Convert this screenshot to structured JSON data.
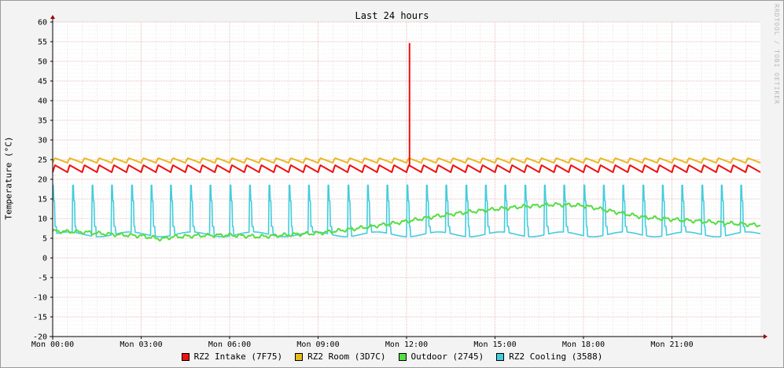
{
  "chart_data": {
    "type": "line",
    "title": "Last 24 hours",
    "watermark": "RRDTOOL / TOBI OETIKER",
    "ylabel": "Temperature (°C)",
    "xlabel": "",
    "ylim": [
      -20,
      60
    ],
    "y_ticks": [
      60,
      55,
      50,
      45,
      40,
      35,
      30,
      25,
      20,
      15,
      10,
      5,
      0,
      -5,
      -10,
      -15,
      -20
    ],
    "x_range_hours": [
      0,
      24
    ],
    "x_ticks": [
      {
        "label": "Mon 00:00",
        "hour": 0
      },
      {
        "label": "Mon 03:00",
        "hour": 3
      },
      {
        "label": "Mon 06:00",
        "hour": 6
      },
      {
        "label": "Mon 09:00",
        "hour": 9
      },
      {
        "label": "Mon 12:00",
        "hour": 12
      },
      {
        "label": "Mon 15:00",
        "hour": 15
      },
      {
        "label": "Mon 18:00",
        "hour": 18
      },
      {
        "label": "Mon 21:00",
        "hour": 21
      }
    ],
    "grid": true,
    "legend_position": "bottom",
    "series": [
      {
        "name": "RZ2 Intake (7F75)",
        "color": "#ee1111",
        "pattern": "sawtooth",
        "base": 22.7,
        "amp": 0.9,
        "cycles_per_hour": 2.0,
        "spike": {
          "hour": 12.1,
          "value": 54.5
        }
      },
      {
        "name": "RZ2 Room (3D7C)",
        "color": "#e8b820",
        "pattern": "sawtooth",
        "base": 24.8,
        "amp": 0.6,
        "cycles_per_hour": 2.0
      },
      {
        "name": "Outdoor (2745)",
        "color": "#55dd44",
        "pattern": "trend",
        "points": [
          [
            0,
            6.8
          ],
          [
            1,
            6.6
          ],
          [
            2,
            6.0
          ],
          [
            3,
            5.6
          ],
          [
            3.7,
            4.8
          ],
          [
            4,
            5.3
          ],
          [
            5,
            5.7
          ],
          [
            6,
            5.8
          ],
          [
            7,
            5.4
          ],
          [
            8,
            5.9
          ],
          [
            9,
            6.3
          ],
          [
            10,
            7.2
          ],
          [
            11,
            8.2
          ],
          [
            12,
            9.3
          ],
          [
            13,
            10.6
          ],
          [
            14,
            11.6
          ],
          [
            15,
            12.4
          ],
          [
            16,
            13.1
          ],
          [
            17,
            13.6
          ],
          [
            18,
            13.3
          ],
          [
            19,
            11.8
          ],
          [
            20,
            10.4
          ],
          [
            21,
            9.8
          ],
          [
            22,
            9.3
          ],
          [
            23,
            8.8
          ],
          [
            24,
            8.3
          ]
        ]
      },
      {
        "name": "RZ2 Cooling (3588)",
        "color": "#44ccdd",
        "pattern": "pulses",
        "min": 6.0,
        "max": 18.5,
        "cycles_per_hour": 1.5
      }
    ]
  }
}
